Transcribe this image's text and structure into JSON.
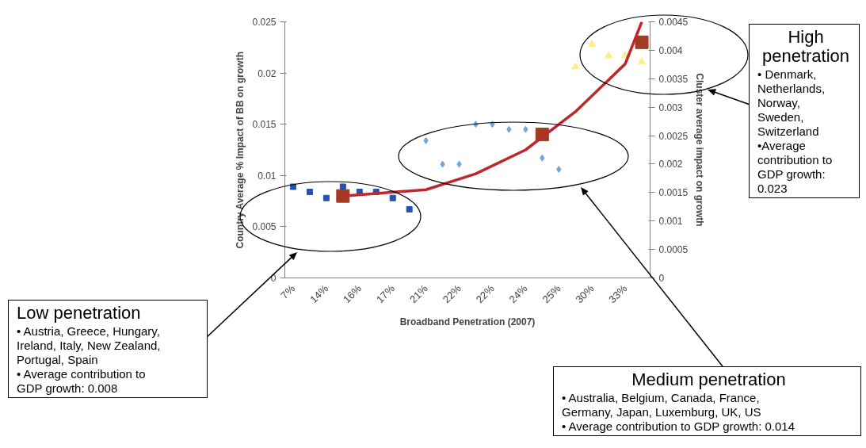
{
  "chart_data": {
    "type": "scatter",
    "xlabel": "Broadband Penetration (2007)",
    "ylabel": "Country Average % Impact of BB on growth",
    "y2label": "Cluster average impact on growth",
    "categories": [
      "7%",
      null,
      "14%",
      null,
      "16%",
      null,
      "17%",
      null,
      "21%",
      null,
      "22%",
      null,
      "22%",
      null,
      "24%",
      null,
      "25%",
      null,
      "30%",
      null,
      "33%",
      null
    ],
    "ylim": [
      0,
      0.025
    ],
    "yticks": [
      0,
      0.005,
      0.01,
      0.015,
      0.02,
      0.025
    ],
    "y2lim": [
      0,
      0.0045
    ],
    "y2ticks": [
      0,
      0.0005,
      0.001,
      0.0015,
      0.002,
      0.0025,
      0.003,
      0.0035,
      0.004,
      0.0045
    ],
    "series": [
      {
        "marker": "square",
        "color": "#2352b0",
        "values": [
          0.0089,
          0.0084,
          0.0078,
          0.0089,
          0.0084,
          0.0084,
          0.0078,
          0.0067,
          null,
          null,
          null,
          null,
          null,
          null,
          null,
          null,
          null,
          null,
          null,
          null,
          null,
          null
        ]
      },
      {
        "marker": "diamond",
        "color": "#6fa8dc",
        "values": [
          null,
          null,
          null,
          null,
          null,
          null,
          null,
          null,
          0.0134,
          0.0111,
          0.0111,
          0.015,
          0.015,
          0.0145,
          0.0145,
          0.0117,
          0.0106,
          null,
          null,
          null,
          null,
          null
        ]
      },
      {
        "marker": "triangle",
        "color": "#ffee88",
        "values": [
          null,
          null,
          null,
          null,
          null,
          null,
          null,
          null,
          null,
          null,
          null,
          null,
          null,
          null,
          null,
          null,
          null,
          0.0206,
          0.0228,
          0.0217,
          0.0217,
          0.0211
        ]
      },
      {
        "marker": "square",
        "color": "#a33a22",
        "values": [
          null,
          null,
          null,
          0.008,
          null,
          null,
          null,
          null,
          null,
          null,
          null,
          null,
          null,
          null,
          null,
          0.014,
          null,
          null,
          null,
          null,
          null,
          0.023
        ]
      },
      {
        "type": "line",
        "axis": "y2",
        "color": "#c0272d",
        "values": [
          null,
          null,
          null,
          0.00144,
          null,
          null,
          null,
          null,
          0.00155,
          null,
          null,
          0.00183,
          null,
          null,
          0.00225,
          null,
          null,
          0.00292,
          null,
          null,
          0.00376,
          0.0045
        ]
      }
    ],
    "annotations": [
      "Low penetration",
      "• Austria, Greece, Hungary,\nIreland, Italy, New Zealand,\nPortugal, Spain\n• Average contribution to\nGDP growth: 0.008",
      "Medium penetration",
      "• Australia, Belgium, Canada, France,\nGermany, Japan, Luxemburg, UK, US\n• Average contribution to GDP growth: 0.014",
      "High\npenetration",
      "• Denmark,\nNetherlands,\nNorway,\nSweden,\nSwitzerland\n•Average\ncontribution to\nGDP growth:\n0.023"
    ]
  }
}
